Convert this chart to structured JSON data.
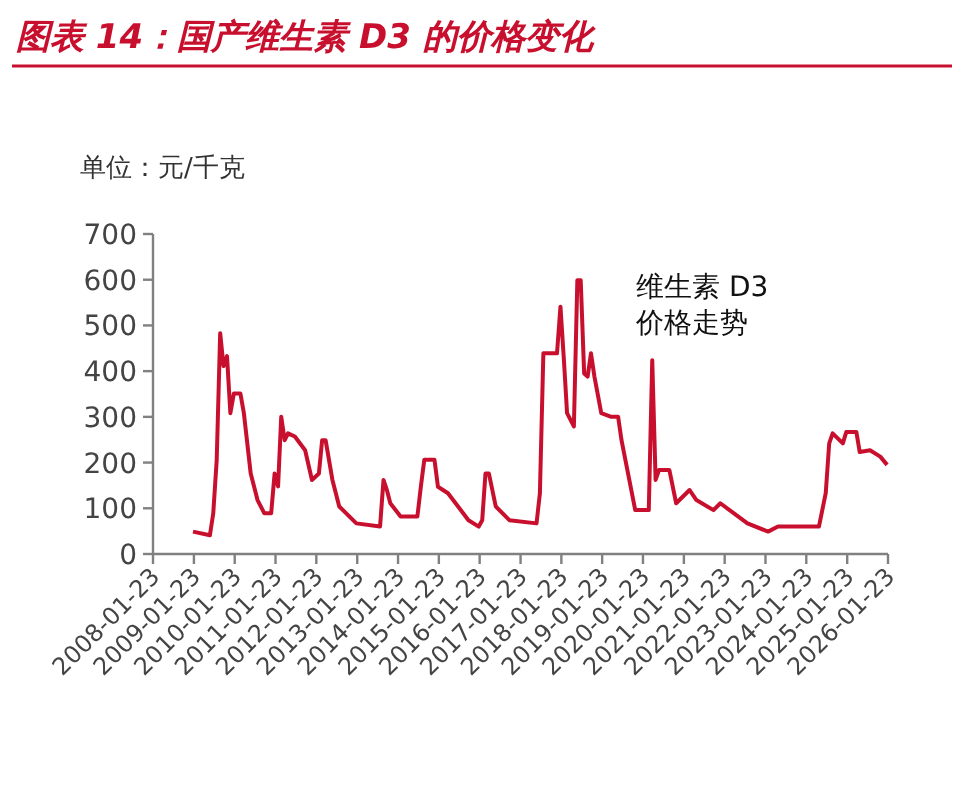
{
  "chart_data": {
    "type": "line",
    "title": "图表 14：国产维生素 D3 的价格变化",
    "ylabel": "单位：元/千克",
    "xlim": [
      "2008-01-23",
      "2026-01-23"
    ],
    "xticks": [
      "2008-01-23",
      "2009-01-23",
      "2010-01-23",
      "2011-01-23",
      "2012-01-23",
      "2013-01-23",
      "2014-01-23",
      "2015-01-23",
      "2016-01-23",
      "2017-01-23",
      "2018-01-23",
      "2019-01-23",
      "2020-01-23",
      "2021-01-23",
      "2022-01-23",
      "2023-01-23",
      "2024-01-23",
      "2025-01-23",
      "2026-01-23"
    ],
    "ylim": [
      0,
      700
    ],
    "yticks": [
      0,
      100,
      200,
      300,
      400,
      500,
      600,
      700
    ],
    "grid": false,
    "marker": "none",
    "line_style": "solid",
    "series": [
      {
        "name": "维生素 D3 价格走势",
        "color": "#c8102e",
        "x": [
          "2009-01",
          "2009-06",
          "2009-07",
          "2009-08",
          "2009-09",
          "2009-10",
          "2009-11",
          "2009-12",
          "2010-01",
          "2010-03",
          "2010-04",
          "2010-06",
          "2010-08",
          "2010-10",
          "2010-12",
          "2011-01",
          "2011-02",
          "2011-03",
          "2011-04",
          "2011-05",
          "2011-07",
          "2011-10",
          "2011-12",
          "2012-02",
          "2012-03",
          "2012-04",
          "2012-06",
          "2012-08",
          "2013-01",
          "2013-08",
          "2013-09",
          "2013-10",
          "2013-11",
          "2014-02",
          "2014-07",
          "2014-08",
          "2014-09",
          "2014-12",
          "2015-01",
          "2015-04",
          "2015-10",
          "2016-01",
          "2016-02",
          "2016-03",
          "2016-04",
          "2016-06",
          "2016-10",
          "2017-06",
          "2017-07",
          "2017-08",
          "2017-12",
          "2018-01",
          "2018-02",
          "2018-03",
          "2018-05",
          "2018-06",
          "2018-07",
          "2018-08",
          "2018-09",
          "2018-10",
          "2018-11",
          "2019-01",
          "2019-04",
          "2019-06",
          "2019-07",
          "2019-11",
          "2020-03",
          "2020-04",
          "2020-05",
          "2020-06",
          "2020-09",
          "2020-11",
          "2021-03",
          "2021-05",
          "2021-10",
          "2021-12",
          "2022-08",
          "2023-02",
          "2023-05",
          "2024-05",
          "2024-07",
          "2024-08",
          "2024-09",
          "2024-12",
          "2025-01",
          "2025-04",
          "2025-05",
          "2025-08",
          "2025-11",
          "2026-01"
        ],
        "values": [
          49,
          41,
          89,
          206,
          483,
          411,
          433,
          308,
          351,
          351,
          308,
          176,
          118,
          89,
          89,
          176,
          148,
          300,
          249,
          264,
          257,
          227,
          162,
          176,
          249,
          249,
          162,
          104,
          67,
          60,
          162,
          140,
          111,
          82,
          82,
          147,
          206,
          206,
          147,
          133,
          74,
          60,
          74,
          176,
          176,
          104,
          74,
          67,
          133,
          439,
          439,
          541,
          424,
          308,
          279,
          599,
          599,
          395,
          388,
          439,
          388,
          308,
          300,
          300,
          249,
          96,
          96,
          424,
          162,
          184,
          184,
          111,
          140,
          118,
          96,
          111,
          67,
          49,
          60,
          60,
          133,
          242,
          264,
          242,
          267,
          267,
          223,
          227,
          213,
          195
        ]
      }
    ]
  }
}
